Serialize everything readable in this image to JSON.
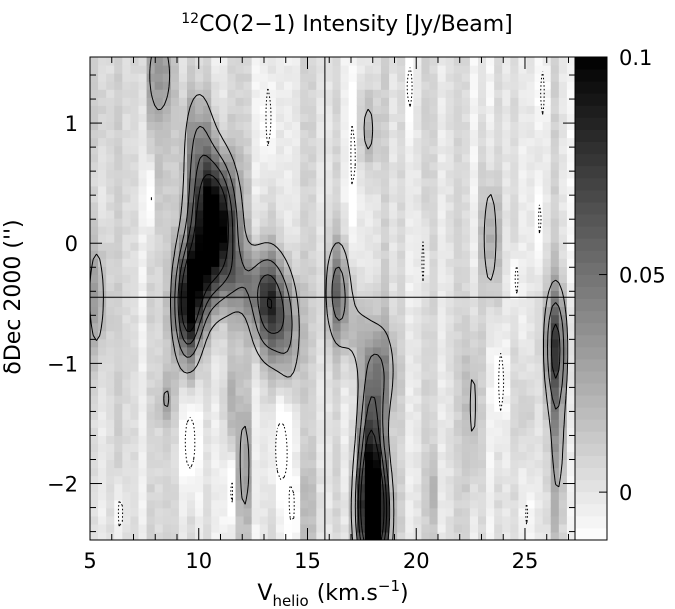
{
  "chart_data": {
    "type": "heatmap",
    "title": "CO(2−1) Intensity [Jy/Beam]",
    "title_superscript": "12",
    "xlabel_main": "V",
    "xlabel_sub": "helio",
    "xlabel_unit": "(km.s",
    "xlabel_unit_exp": "−1",
    "xlabel_close": ")",
    "ylabel": "δDec 2000 ('')",
    "xlim": [
      5,
      27.3
    ],
    "ylim": [
      -2.47,
      1.55
    ],
    "xticks": [
      5,
      10,
      15,
      20,
      25
    ],
    "xtick_labels": [
      "5",
      "10",
      "15",
      "20",
      "25"
    ],
    "yticks": [
      -2,
      -1,
      0,
      1
    ],
    "ytick_labels": [
      "−2",
      "−1",
      "0",
      "1"
    ],
    "crosshair": {
      "x": 15.8,
      "y": -0.45
    },
    "colorbar": {
      "range": [
        -0.011,
        0.1
      ],
      "ticks": [
        0,
        0.05,
        0.1
      ],
      "tick_labels": [
        "0",
        "0.05",
        "0.1"
      ]
    },
    "colormap": "white-to-black",
    "contours_positive": [
      0.02,
      0.04,
      0.06,
      0.08
    ],
    "contours_negative": [
      -0.02
    ],
    "components": [
      {
        "x": 10.7,
        "y": 0.25,
        "sx": 0.7,
        "sy": 0.35,
        "amp": 0.09
      },
      {
        "x": 10.6,
        "y": -0.1,
        "sx": 0.75,
        "sy": 0.35,
        "amp": 0.05
      },
      {
        "x": 10.0,
        "y": 0.85,
        "sx": 0.5,
        "sy": 0.35,
        "amp": 0.035
      },
      {
        "x": 9.5,
        "y": -0.55,
        "sx": 0.45,
        "sy": 0.32,
        "amp": 0.085
      },
      {
        "x": 9.9,
        "y": -0.3,
        "sx": 0.5,
        "sy": 0.25,
        "amp": 0.03
      },
      {
        "x": 13.2,
        "y": -0.5,
        "sx": 0.55,
        "sy": 0.3,
        "amp": 0.075
      },
      {
        "x": 14.1,
        "y": -0.75,
        "sx": 0.45,
        "sy": 0.35,
        "amp": 0.035
      },
      {
        "x": 12.0,
        "y": -0.3,
        "sx": 0.6,
        "sy": 0.2,
        "amp": 0.025
      },
      {
        "x": 8.2,
        "y": 1.4,
        "sx": 0.5,
        "sy": 0.3,
        "amp": 0.03
      },
      {
        "x": 8.0,
        "y": 0.5,
        "sx": 0.3,
        "sy": 0.3,
        "amp": 0.012
      },
      {
        "x": 18.0,
        "y": -2.25,
        "sx": 0.5,
        "sy": 0.35,
        "amp": 0.125
      },
      {
        "x": 17.9,
        "y": -1.6,
        "sx": 0.4,
        "sy": 0.45,
        "amp": 0.06
      },
      {
        "x": 18.5,
        "y": -1.05,
        "sx": 0.45,
        "sy": 0.3,
        "amp": 0.03
      },
      {
        "x": 16.4,
        "y": -0.4,
        "sx": 0.4,
        "sy": 0.3,
        "amp": 0.05
      },
      {
        "x": 17.3,
        "y": -0.75,
        "sx": 0.5,
        "sy": 0.25,
        "amp": 0.02
      },
      {
        "x": 17.8,
        "y": 0.95,
        "sx": 0.3,
        "sy": 0.25,
        "amp": 0.025
      },
      {
        "x": 23.4,
        "y": 0.05,
        "sx": 0.3,
        "sy": 0.4,
        "amp": 0.03
      },
      {
        "x": 26.4,
        "y": -0.85,
        "sx": 0.35,
        "sy": 0.35,
        "amp": 0.065
      },
      {
        "x": 26.5,
        "y": -1.7,
        "sx": 0.3,
        "sy": 0.5,
        "amp": 0.025
      },
      {
        "x": 5.3,
        "y": -0.45,
        "sx": 0.35,
        "sy": 0.4,
        "amp": 0.03
      },
      {
        "x": 8.5,
        "y": -1.3,
        "sx": 0.25,
        "sy": 0.15,
        "amp": 0.022
      },
      {
        "x": 12.1,
        "y": -1.85,
        "sx": 0.25,
        "sy": 0.4,
        "amp": 0.028
      },
      {
        "x": 11.4,
        "y": -1.3,
        "sx": 0.25,
        "sy": 0.3,
        "amp": 0.018
      },
      {
        "x": 22.6,
        "y": -1.35,
        "sx": 0.3,
        "sy": 0.55,
        "amp": 0.022
      },
      {
        "x": 20.7,
        "y": -2.1,
        "sx": 0.15,
        "sy": 0.2,
        "amp": 0.02
      },
      {
        "x": 25.0,
        "y": -1.4,
        "sx": 0.25,
        "sy": 0.25,
        "amp": 0.015
      },
      {
        "x": 15.0,
        "y": -2.2,
        "sx": 0.3,
        "sy": 0.3,
        "amp": 0.012
      },
      {
        "x": 5.4,
        "y": 1.1,
        "sx": 0.3,
        "sy": 0.3,
        "amp": 0.012
      },
      {
        "x": 7.8,
        "y": 0.4,
        "sx": 0.15,
        "sy": 0.25,
        "amp": -0.03
      },
      {
        "x": 17.1,
        "y": 0.75,
        "sx": 0.12,
        "sy": 0.35,
        "amp": -0.03
      },
      {
        "x": 13.2,
        "y": 1.05,
        "sx": 0.15,
        "sy": 0.3,
        "amp": -0.028
      },
      {
        "x": 19.7,
        "y": 1.3,
        "sx": 0.15,
        "sy": 0.2,
        "amp": -0.028
      },
      {
        "x": 20.3,
        "y": -0.15,
        "sx": 0.1,
        "sy": 0.25,
        "amp": -0.025
      },
      {
        "x": 24.6,
        "y": -0.3,
        "sx": 0.1,
        "sy": 0.15,
        "amp": -0.028
      },
      {
        "x": 25.8,
        "y": 1.25,
        "sx": 0.12,
        "sy": 0.22,
        "amp": -0.028
      },
      {
        "x": 25.7,
        "y": 0.2,
        "sx": 0.12,
        "sy": 0.2,
        "amp": -0.025
      },
      {
        "x": 9.6,
        "y": -1.65,
        "sx": 0.25,
        "sy": 0.25,
        "amp": -0.03
      },
      {
        "x": 11.5,
        "y": -2.05,
        "sx": 0.15,
        "sy": 0.25,
        "amp": -0.025
      },
      {
        "x": 13.8,
        "y": -1.7,
        "sx": 0.3,
        "sy": 0.3,
        "amp": -0.03
      },
      {
        "x": 14.3,
        "y": -2.2,
        "sx": 0.15,
        "sy": 0.2,
        "amp": -0.025
      },
      {
        "x": 6.4,
        "y": -2.25,
        "sx": 0.15,
        "sy": 0.2,
        "amp": -0.025
      },
      {
        "x": 23.9,
        "y": -1.15,
        "sx": 0.15,
        "sy": 0.3,
        "amp": -0.028
      },
      {
        "x": 25.1,
        "y": -2.25,
        "sx": 0.1,
        "sy": 0.15,
        "amp": -0.025
      }
    ]
  }
}
